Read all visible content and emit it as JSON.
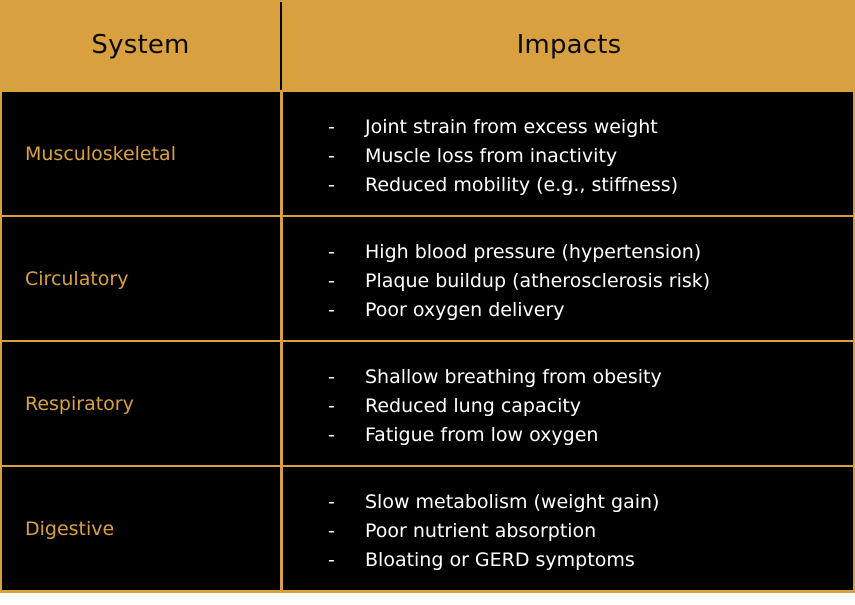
{
  "header": {
    "system": "System",
    "impacts": "Impacts"
  },
  "rows": [
    {
      "system": "Musculoskeletal",
      "impacts": [
        "Joint strain from excess weight",
        "Muscle loss from inactivity",
        "Reduced mobility (e.g., stiffness)"
      ]
    },
    {
      "system": "Circulatory",
      "impacts": [
        "High blood pressure (hypertension)",
        "Plaque buildup (atherosclerosis risk)",
        "Poor oxygen delivery"
      ]
    },
    {
      "system": "Respiratory",
      "impacts": [
        "Shallow breathing from obesity",
        "Reduced lung capacity",
        "Fatigue from low oxygen"
      ]
    },
    {
      "system": "Digestive",
      "impacts": [
        "Slow metabolism (weight gain)",
        "Poor nutrient absorption",
        "Bloating or GERD symptoms"
      ]
    }
  ],
  "bullet": "-",
  "colors": {
    "accent": "#d9a03f",
    "cell_background": "#000000",
    "impact_text": "#ffffff",
    "header_text": "#0a0a0a"
  }
}
